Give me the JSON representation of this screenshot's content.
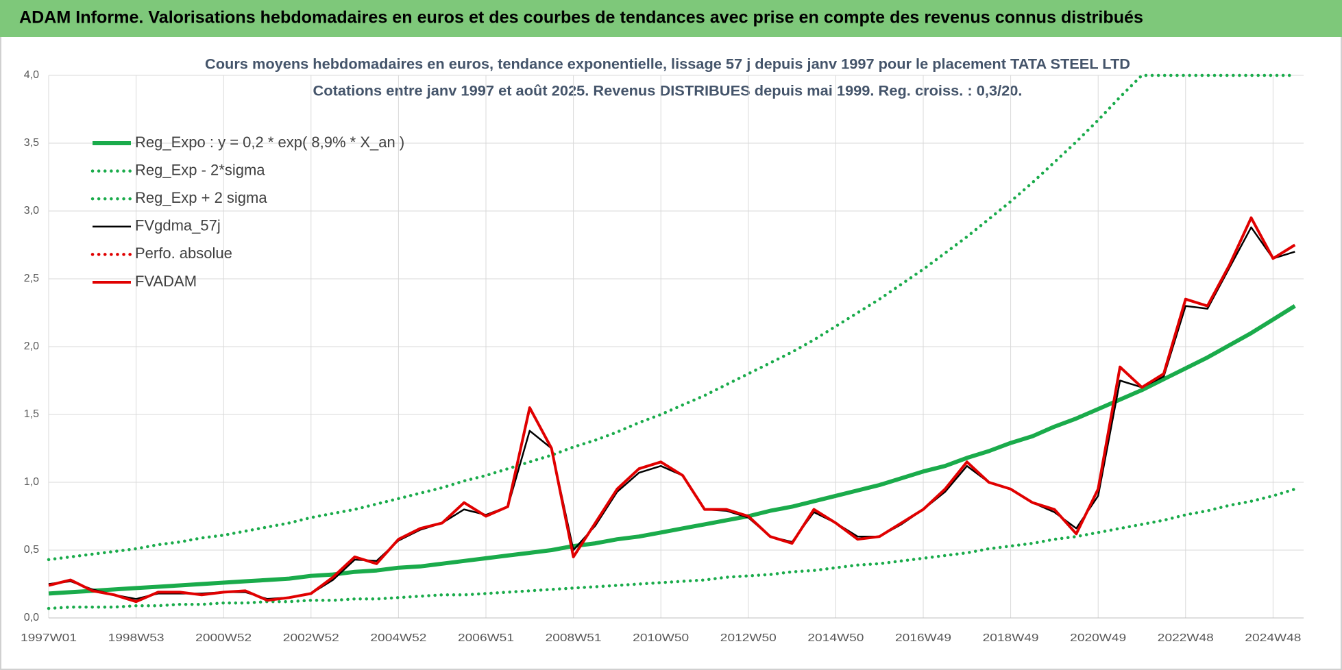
{
  "header": {
    "title": "ADAM Informe. Valorisations hebdomadaires en euros et des courbes de tendances avec prise en compte des revenus connus distribués"
  },
  "chart_data": {
    "type": "line",
    "title": "Cours moyens hebdomadaires en euros, tendance exponentielle, lissage 57 j depuis janv 1997  pour le placement TATA STEEL LTD",
    "subtitle": "Cotations entre janv 1997 et août 2025. Revenus DISTRIBUES depuis mai 1999. Reg. croiss. : 0,3/20.",
    "categories": [
      "1997W01",
      null,
      null,
      null,
      "1998W53",
      null,
      null,
      null,
      "2000W52",
      null,
      null,
      null,
      "2002W52",
      null,
      null,
      null,
      "2004W52",
      null,
      null,
      null,
      "2006W51",
      null,
      null,
      null,
      "2008W51",
      null,
      null,
      null,
      "2010W50",
      null,
      null,
      null,
      "2012W50",
      null,
      null,
      null,
      "2014W50",
      null,
      null,
      null,
      "2016W49",
      null,
      null,
      null,
      "2018W49",
      null,
      null,
      null,
      "2020W49",
      null,
      null,
      null,
      "2022W48",
      null,
      null,
      null,
      "2024W48",
      null
    ],
    "ylim": [
      0,
      4
    ],
    "yticks": [
      {
        "value": 0,
        "label": "0,0"
      },
      {
        "value": 0.5,
        "label": "0,5"
      },
      {
        "value": 1,
        "label": "1,0"
      },
      {
        "value": 1.5,
        "label": "1,5"
      },
      {
        "value": 2,
        "label": "2,0"
      },
      {
        "value": 2.5,
        "label": "2,5"
      },
      {
        "value": 3,
        "label": "3,0"
      },
      {
        "value": 3.5,
        "label": "3,5"
      },
      {
        "value": 4,
        "label": "4,0"
      }
    ],
    "grid": true,
    "legend": "top-left",
    "series": [
      {
        "name": "Reg_Expo : y = 0,2 * exp( 8,9% *  X_an )",
        "color": "#1aab4b",
        "style": "solid",
        "values": [
          0.18,
          0.19,
          0.2,
          0.21,
          0.22,
          0.23,
          0.24,
          0.25,
          0.26,
          0.27,
          0.28,
          0.29,
          0.31,
          0.32,
          0.34,
          0.35,
          0.37,
          0.38,
          0.4,
          0.42,
          0.44,
          0.46,
          0.48,
          0.5,
          0.53,
          0.55,
          0.58,
          0.6,
          0.63,
          0.66,
          0.69,
          0.72,
          0.75,
          0.79,
          0.82,
          0.86,
          0.9,
          0.94,
          0.98,
          1.03,
          1.08,
          1.12,
          1.18,
          1.23,
          1.29,
          1.34,
          1.41,
          1.47,
          1.54,
          1.61,
          1.68,
          1.76,
          1.84,
          1.92,
          2.01,
          2.1,
          2.2,
          2.3
        ]
      },
      {
        "name": "Reg_Exp - 2*sigma",
        "color": "#1aab4b",
        "style": "dotted",
        "values": [
          0.07,
          0.08,
          0.08,
          0.08,
          0.09,
          0.09,
          0.1,
          0.1,
          0.11,
          0.11,
          0.12,
          0.12,
          0.13,
          0.13,
          0.14,
          0.14,
          0.15,
          0.16,
          0.17,
          0.17,
          0.18,
          0.19,
          0.2,
          0.21,
          0.22,
          0.23,
          0.24,
          0.25,
          0.26,
          0.27,
          0.28,
          0.3,
          0.31,
          0.32,
          0.34,
          0.35,
          0.37,
          0.39,
          0.4,
          0.42,
          0.44,
          0.46,
          0.48,
          0.51,
          0.53,
          0.55,
          0.58,
          0.6,
          0.63,
          0.66,
          0.69,
          0.72,
          0.76,
          0.79,
          0.83,
          0.86,
          0.9,
          0.95
        ]
      },
      {
        "name": "Reg_Exp + 2 sigma",
        "color": "#1aab4b",
        "style": "dotted",
        "values": [
          0.43,
          0.45,
          0.47,
          0.49,
          0.51,
          0.54,
          0.56,
          0.59,
          0.61,
          0.64,
          0.67,
          0.7,
          0.74,
          0.77,
          0.8,
          0.84,
          0.88,
          0.92,
          0.96,
          1.01,
          1.05,
          1.1,
          1.15,
          1.2,
          1.26,
          1.31,
          1.37,
          1.44,
          1.5,
          1.57,
          1.64,
          1.72,
          1.8,
          1.88,
          1.96,
          2.05,
          2.15,
          2.25,
          2.35,
          2.46,
          2.57,
          2.69,
          2.81,
          2.94,
          3.07,
          3.21,
          3.36,
          3.51,
          3.67,
          3.84,
          4.0,
          4.0,
          4.0,
          4.0,
          4.0,
          4.0,
          4.0,
          4.0
        ]
      },
      {
        "name": "FVgdma_57j",
        "color": "#000000",
        "style": "thin",
        "values": [
          0.25,
          0.27,
          0.21,
          0.17,
          0.14,
          0.18,
          0.18,
          0.18,
          0.19,
          0.19,
          0.14,
          0.15,
          0.18,
          0.28,
          0.43,
          0.42,
          0.57,
          0.65,
          0.7,
          0.8,
          0.76,
          0.82,
          1.38,
          1.25,
          0.5,
          0.68,
          0.93,
          1.07,
          1.12,
          1.05,
          0.8,
          0.79,
          0.74,
          0.6,
          0.56,
          0.78,
          0.7,
          0.6,
          0.6,
          0.69,
          0.8,
          0.93,
          1.12,
          1.0,
          0.95,
          0.85,
          0.78,
          0.66,
          0.9,
          1.75,
          1.7,
          1.78,
          2.3,
          2.28,
          2.58,
          2.88,
          2.65,
          2.7
        ]
      },
      {
        "name": "Perfo. absolue",
        "color": "#e00000",
        "style": "dotted",
        "values": [
          null,
          null,
          null,
          null,
          null,
          null,
          null,
          null,
          null,
          null,
          null,
          null,
          null,
          null,
          null,
          null,
          null,
          null,
          null,
          null,
          null,
          null,
          null,
          null,
          null,
          null,
          null,
          null,
          null,
          null,
          null,
          null,
          null,
          null,
          null,
          null,
          null,
          null,
          null,
          null,
          null,
          null,
          null,
          null,
          null,
          null,
          null,
          null,
          null,
          null,
          null,
          null,
          null,
          null,
          null,
          null,
          null,
          null
        ]
      },
      {
        "name": "FVADAM",
        "color": "#e00000",
        "style": "solid",
        "values": [
          0.24,
          0.28,
          0.2,
          0.17,
          0.12,
          0.19,
          0.19,
          0.17,
          0.19,
          0.2,
          0.13,
          0.15,
          0.18,
          0.3,
          0.45,
          0.4,
          0.58,
          0.66,
          0.7,
          0.85,
          0.75,
          0.82,
          1.55,
          1.25,
          0.45,
          0.7,
          0.95,
          1.1,
          1.15,
          1.05,
          0.8,
          0.8,
          0.75,
          0.6,
          0.55,
          0.8,
          0.7,
          0.58,
          0.6,
          0.7,
          0.8,
          0.95,
          1.15,
          1.0,
          0.95,
          0.85,
          0.8,
          0.62,
          0.95,
          1.85,
          1.7,
          1.8,
          2.35,
          2.3,
          2.6,
          2.95,
          2.65,
          2.75
        ]
      }
    ]
  }
}
